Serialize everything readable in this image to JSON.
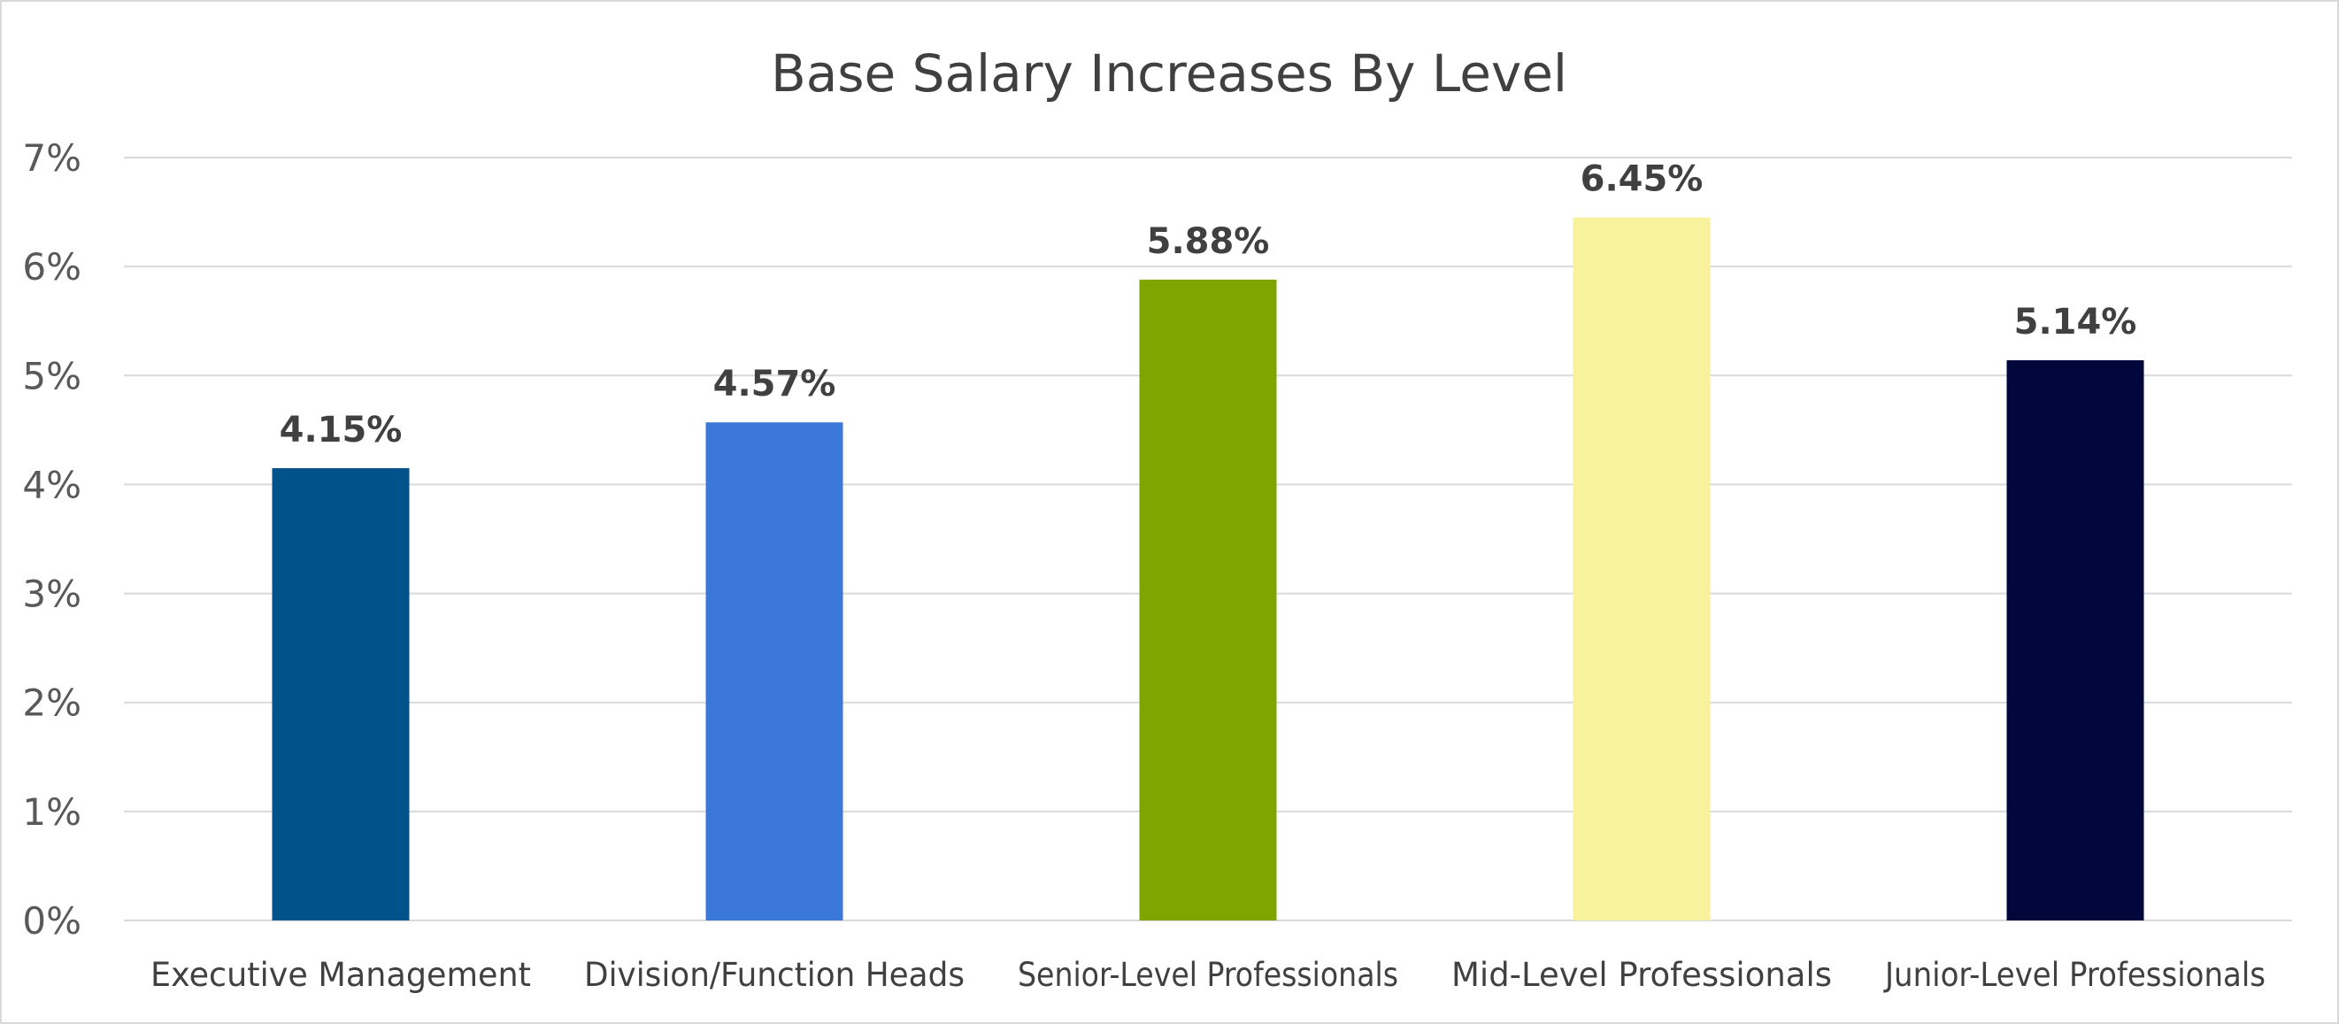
{
  "chart_data": {
    "type": "bar",
    "title": "Base Salary Increases By Level",
    "xlabel": "",
    "ylabel": "",
    "ylim": [
      0,
      7
    ],
    "y_ticks": [
      "0%",
      "1%",
      "2%",
      "3%",
      "4%",
      "5%",
      "6%",
      "7%"
    ],
    "grid": true,
    "legend": "none",
    "categories": [
      "Executive Management",
      "Division/Function Heads",
      "Senior-Level Professionals",
      "Mid-Level Professionals",
      "Junior-Level Professionals"
    ],
    "values": [
      4.15,
      4.57,
      5.88,
      6.45,
      5.14
    ],
    "data_labels": [
      "4.15%",
      "4.57%",
      "5.88%",
      "6.45%",
      "5.14%"
    ],
    "colors": [
      "#00528A",
      "#3C78D8",
      "#7FA600",
      "#F8F29C",
      "#02073B"
    ]
  }
}
